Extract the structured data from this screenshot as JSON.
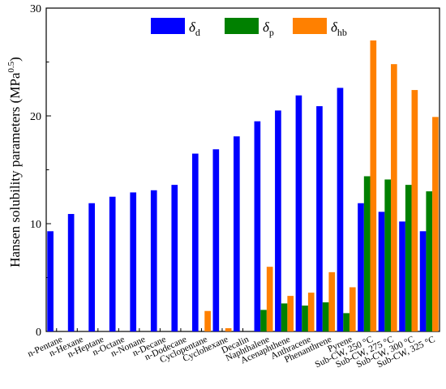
{
  "chart_data": {
    "type": "bar",
    "ylabel": "Hansen solubility parameters (MPa",
    "ylabel_sup": "0.5",
    "ylabel_close": ")",
    "ylim": [
      0,
      30
    ],
    "yticks": [
      0,
      10,
      20,
      30
    ],
    "grid": false,
    "legend_position": "top-center",
    "categories": [
      "n-Pentane",
      "n-Hexane",
      "n-Heptane",
      "n-Octane",
      "n-Nonane",
      "n-Decane",
      "n-Dodecane",
      "Cyclopentane",
      "Cyclohexane",
      "Decalin",
      "Naphthalene",
      "Acenaphthene",
      "Anthracene",
      "Phenanthrene",
      "Pyrene",
      "Sub-CW, 250 °C",
      "Sub-CW, 275 °C",
      "Sub-CW, 300 °C",
      "Sub-CW, 325 °C"
    ],
    "series": [
      {
        "name": "δd",
        "symbol": "δ",
        "subscript": "d",
        "color": "#0000ff",
        "values": [
          9.3,
          10.9,
          11.9,
          12.5,
          12.9,
          13.1,
          13.6,
          16.5,
          16.9,
          18.1,
          19.5,
          20.5,
          21.9,
          20.9,
          22.6,
          11.9,
          11.1,
          10.2,
          9.3
        ]
      },
      {
        "name": "δp",
        "symbol": "δ",
        "subscript": "p",
        "color": "#008000",
        "values": [
          0,
          0,
          0,
          0,
          0,
          0,
          0,
          0,
          0,
          0,
          2.0,
          2.6,
          2.4,
          2.7,
          1.7,
          14.4,
          14.1,
          13.6,
          13.0
        ]
      },
      {
        "name": "δhb",
        "symbol": "δ",
        "subscript": "hb",
        "color": "#ff8000",
        "values": [
          0,
          0,
          0,
          0,
          0,
          0,
          0,
          1.9,
          0.3,
          0,
          6.0,
          3.3,
          3.6,
          5.5,
          4.1,
          27.0,
          24.8,
          22.4,
          19.9
        ]
      }
    ]
  }
}
